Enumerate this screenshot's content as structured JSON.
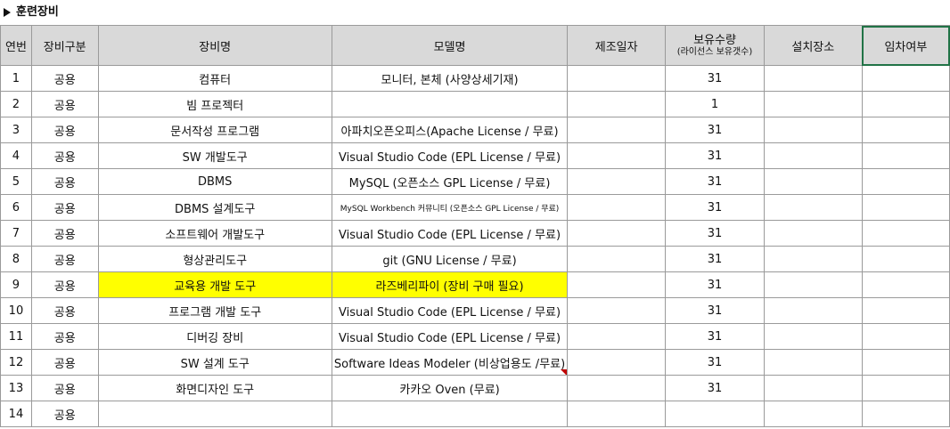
{
  "section": {
    "title": "훈련장비"
  },
  "headers": {
    "no": "연번",
    "category": "장비구분",
    "name": "장비명",
    "model": "모델명",
    "mfg_date": "제조일자",
    "qty_main": "보유수량",
    "qty_sub": "(라이선스 보유갯수)",
    "location": "설치장소",
    "lease": "임차여부"
  },
  "rows": [
    {
      "no": "1",
      "category": "공용",
      "name": "컴퓨터",
      "model": "모니터, 본체 (사양상세기재)",
      "mfg_date": "",
      "qty": "31",
      "location": "",
      "lease": ""
    },
    {
      "no": "2",
      "category": "공용",
      "name": "빔 프로젝터",
      "model": "",
      "mfg_date": "",
      "qty": "1",
      "location": "",
      "lease": ""
    },
    {
      "no": "3",
      "category": "공용",
      "name": "문서작성 프로그램",
      "model": "아파치오픈오피스(Apache License / 무료)",
      "mfg_date": "",
      "qty": "31",
      "location": "",
      "lease": ""
    },
    {
      "no": "4",
      "category": "공용",
      "name": "SW 개발도구",
      "model": "Visual Studio Code (EPL License / 무료)",
      "mfg_date": "",
      "qty": "31",
      "location": "",
      "lease": ""
    },
    {
      "no": "5",
      "category": "공용",
      "name": "DBMS",
      "model": "MySQL (오픈소스 GPL License / 무료)",
      "mfg_date": "",
      "qty": "31",
      "location": "",
      "lease": ""
    },
    {
      "no": "6",
      "category": "공용",
      "name": "DBMS 설계도구",
      "model": "MySQL Workbench 커뮤니티 (오픈소스 GPL License / 무료)",
      "mfg_date": "",
      "qty": "31",
      "location": "",
      "lease": ""
    },
    {
      "no": "7",
      "category": "공용",
      "name": "소프트웨어 개발도구",
      "model": "Visual Studio Code (EPL License / 무료)",
      "mfg_date": "",
      "qty": "31",
      "location": "",
      "lease": ""
    },
    {
      "no": "8",
      "category": "공용",
      "name": "형상관리도구",
      "model": "git (GNU License / 무료)",
      "mfg_date": "",
      "qty": "31",
      "location": "",
      "lease": ""
    },
    {
      "no": "9",
      "category": "공용",
      "name": "교육용 개발 도구",
      "model": "라즈베리파이  (장비 구매 필요)",
      "mfg_date": "",
      "qty": "31",
      "location": "",
      "lease": ""
    },
    {
      "no": "10",
      "category": "공용",
      "name": "프로그램 개발 도구",
      "model": "Visual Studio Code (EPL License / 무료)",
      "mfg_date": "",
      "qty": "31",
      "location": "",
      "lease": ""
    },
    {
      "no": "11",
      "category": "공용",
      "name": "디버깅 장비",
      "model": "Visual Studio Code (EPL License / 무료)",
      "mfg_date": "",
      "qty": "31",
      "location": "",
      "lease": ""
    },
    {
      "no": "12",
      "category": "공용",
      "name": "SW 설계 도구",
      "model": "Software Ideas Modeler (비상업용도 /무료)",
      "mfg_date": "",
      "qty": "31",
      "location": "",
      "lease": ""
    },
    {
      "no": "13",
      "category": "공용",
      "name": "화면디자인 도구",
      "model": "카카오 Oven (무료)",
      "mfg_date": "",
      "qty": "31",
      "location": "",
      "lease": ""
    },
    {
      "no": "14",
      "category": "공용",
      "name": "",
      "model": "",
      "mfg_date": "",
      "qty": "",
      "location": "",
      "lease": ""
    }
  ],
  "colors": {
    "header_bg": "#d9d9d9",
    "highlight": "#ffff00",
    "selection": "#217346",
    "comment_marker": "#c00000"
  },
  "icons": {
    "section_marker": "triangle-right-icon",
    "comment_marker": "comment-indicator-icon"
  }
}
